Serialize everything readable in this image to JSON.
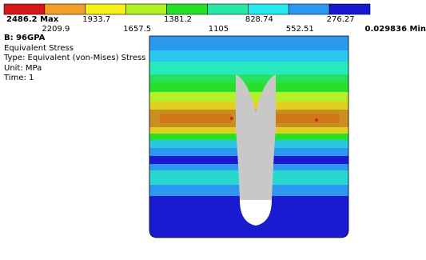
{
  "legend": {
    "colors": [
      "#d81818",
      "#f0a028",
      "#f4f018",
      "#b4f028",
      "#28e028",
      "#28e8a8",
      "#28e8f0",
      "#2c98f0",
      "#1818d0"
    ],
    "labels": [
      "2486.2 Max",
      "2209.9",
      "1933.7",
      "1657.5",
      "1381.2",
      "1105",
      "828.74",
      "552.51",
      "276.27",
      "0.029836 Min"
    ]
  },
  "info": {
    "title": "B: 96GPA",
    "lines": [
      "Equivalent Stress",
      "Type: Equivalent (von-Mises) Stress",
      "Unit: MPa",
      "Time: 1"
    ]
  }
}
